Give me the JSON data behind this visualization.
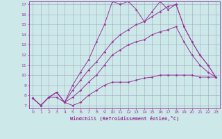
{
  "xlabel": "Windchill (Refroidissement éolien,°C)",
  "background_color": "#cce8e8",
  "grid_color": "#9999bb",
  "line_color": "#993399",
  "xmin": 0,
  "xmax": 23,
  "ymin": 7,
  "ymax": 17,
  "series": [
    [
      7.7,
      7.0,
      7.8,
      7.8,
      7.3,
      7.0,
      7.3,
      8.0,
      8.5,
      9.0,
      9.3,
      9.3,
      9.3,
      9.5,
      9.7,
      9.8,
      10.0,
      10.0,
      10.0,
      10.0,
      10.0,
      9.8,
      9.8,
      9.8
    ],
    [
      7.7,
      7.0,
      7.8,
      8.3,
      7.3,
      7.8,
      8.5,
      9.3,
      10.0,
      11.0,
      12.0,
      12.5,
      13.0,
      13.3,
      13.5,
      14.0,
      14.3,
      14.5,
      14.8,
      13.3,
      12.0,
      11.0,
      10.3,
      9.8
    ],
    [
      7.7,
      7.0,
      7.8,
      8.3,
      7.3,
      8.5,
      9.5,
      10.5,
      11.3,
      12.3,
      13.3,
      14.0,
      14.5,
      15.0,
      15.3,
      15.8,
      16.3,
      16.8,
      17.0,
      14.8,
      13.3,
      12.0,
      11.0,
      9.8
    ],
    [
      7.7,
      7.0,
      7.8,
      8.3,
      7.3,
      9.0,
      10.3,
      11.5,
      13.3,
      15.0,
      17.3,
      17.0,
      17.3,
      16.5,
      15.3,
      16.3,
      17.3,
      16.5,
      17.0,
      14.8,
      13.3,
      12.0,
      11.0,
      9.8
    ]
  ]
}
